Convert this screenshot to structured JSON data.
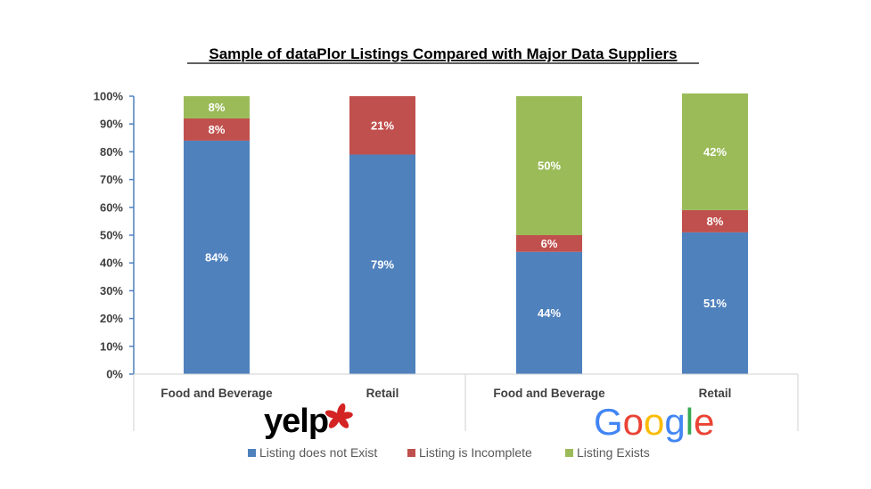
{
  "chart_data": {
    "type": "bar",
    "stacked": true,
    "title": "Sample of dataPlor Listings Compared with Major Data Suppliers",
    "categories": [
      "Food and Beverage",
      "Retail",
      "Food and Beverage",
      "Retail"
    ],
    "groups": [
      {
        "label": "yelp",
        "logo": "yelp-logo",
        "categories": [
          0,
          1
        ]
      },
      {
        "label": "Google",
        "logo": "google-logo",
        "categories": [
          2,
          3
        ]
      }
    ],
    "series": [
      {
        "name": "Listing does not Exist",
        "color": "#4f81bd",
        "values": [
          84,
          79,
          44,
          51
        ],
        "labels": [
          "84%",
          "79%",
          "44%",
          "51%"
        ]
      },
      {
        "name": "Listing is Incomplete",
        "color": "#c0504d",
        "values": [
          8,
          21,
          6,
          8
        ],
        "labels": [
          "8%",
          "21%",
          "6%",
          "8%"
        ]
      },
      {
        "name": "Listing Exists",
        "color": "#9bbb59",
        "values": [
          8,
          0,
          50,
          42
        ],
        "labels": [
          "8%",
          "",
          "50%",
          "42%"
        ]
      }
    ],
    "ylim": [
      0,
      100
    ],
    "yticks": [
      "0%",
      "10%",
      "20%",
      "30%",
      "40%",
      "50%",
      "60%",
      "70%",
      "80%",
      "90%",
      "100%"
    ],
    "grid": false,
    "legend": "bottom"
  }
}
